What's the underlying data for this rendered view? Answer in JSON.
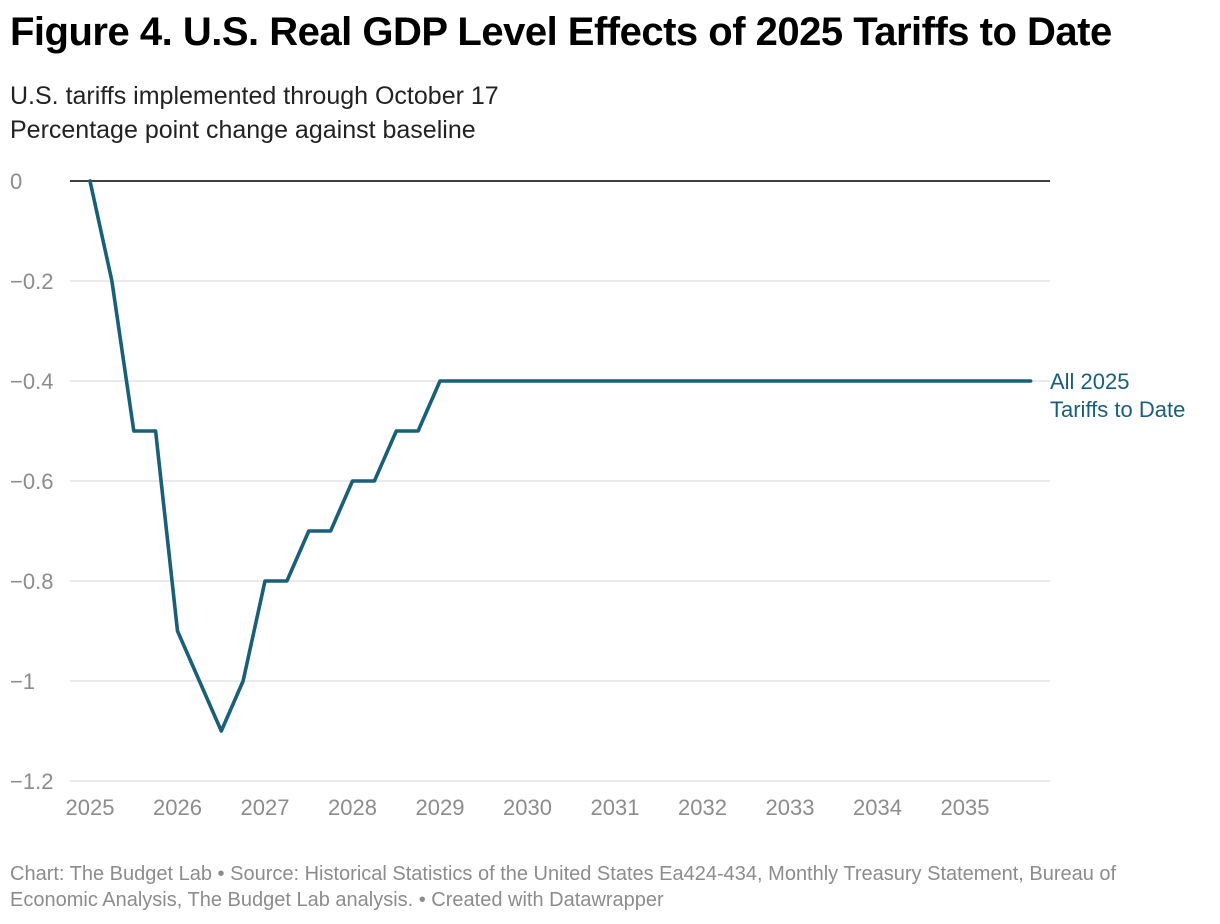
{
  "header": {
    "title": "Figure 4. U.S. Real GDP Level Effects of 2025 Tariffs to Date",
    "subtitle_line1": "U.S. tariffs implemented through October 17",
    "subtitle_line2": "Percentage point change against baseline"
  },
  "footer": {
    "text": "Chart: The Budget Lab • Source: Historical Statistics of the United States Ea424-434, Monthly Treasury Statement, Bureau of Economic Analysis, The Budget Lab analysis.  • Created with Datawrapper"
  },
  "colors": {
    "series": "#1a5f78",
    "zero_line": "#000000",
    "grid": "#e3e3e3"
  },
  "chart_data": {
    "type": "line",
    "title": "Figure 4. U.S. Real GDP Level Effects of 2025 Tariffs to Date",
    "subtitle": "U.S. tariffs implemented through October 17 / Percentage point change against baseline",
    "xlabel": "",
    "ylabel": "",
    "xlim": [
      2025,
      2036
    ],
    "ylim": [
      -1.2,
      0
    ],
    "x_ticks": [
      "2025",
      "2026",
      "2027",
      "2028",
      "2029",
      "2030",
      "2031",
      "2032",
      "2033",
      "2034",
      "2035"
    ],
    "y_ticks": [
      "0",
      "−0.2",
      "−0.4",
      "−0.6",
      "−0.8",
      "−1",
      "−1.2"
    ],
    "y_tick_values": [
      0,
      -0.2,
      -0.4,
      -0.6,
      -0.8,
      -1,
      -1.2
    ],
    "grid": true,
    "legend": "inline label at line end (right)",
    "series": [
      {
        "name": "All 2025 Tariffs to Date",
        "label_lines": [
          "All 2025",
          "Tariffs to Date"
        ],
        "color": "#1a5f78",
        "points": [
          [
            "2025 Q1",
            0
          ],
          [
            "2025 Q2",
            -0.2
          ],
          [
            "2025 Q3",
            -0.5
          ],
          [
            "2025 Q4",
            -0.5
          ],
          [
            "2026 Q1",
            -0.9
          ],
          [
            "2026 Q2",
            -1.0
          ],
          [
            "2026 Q3",
            -1.1
          ],
          [
            "2026 Q4",
            -1.0
          ],
          [
            "2027 Q1",
            -0.8
          ],
          [
            "2027 Q2",
            -0.8
          ],
          [
            "2027 Q3",
            -0.7
          ],
          [
            "2027 Q4",
            -0.7
          ],
          [
            "2028 Q1",
            -0.6
          ],
          [
            "2028 Q2",
            -0.6
          ],
          [
            "2028 Q3",
            -0.5
          ],
          [
            "2028 Q4",
            -0.5
          ],
          [
            "2029 Q1",
            -0.4
          ],
          [
            "2035 Q4",
            -0.4
          ]
        ]
      }
    ]
  }
}
